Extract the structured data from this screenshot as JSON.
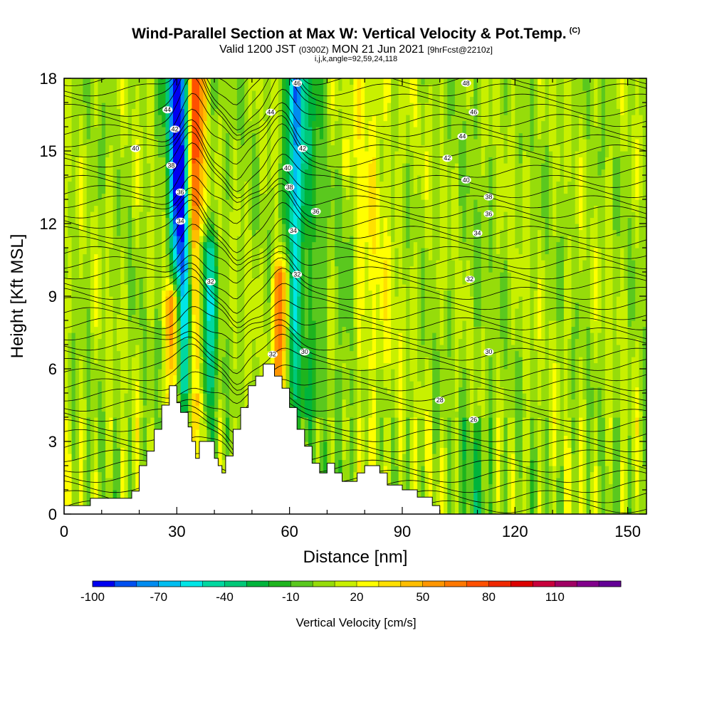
{
  "header": {
    "title": "Wind-Parallel Section at Max W: Vertical Velocity & Pot.Temp.",
    "title_mark": "(C)",
    "valid_prefix": "Valid 1200 JST",
    "valid_zulu": "(0300Z)",
    "valid_date": "MON 21 Jun 2021",
    "forecast": "[9hrFcst@2210z]",
    "params": "i,j,k,angle=92,59,24,118"
  },
  "chart_data": {
    "type": "heatmap",
    "title": "Wind-Parallel Section at Max W: Vertical Velocity & Pot.Temp.",
    "xlabel": "Distance [nm]",
    "ylabel": "Height [Kft MSL]",
    "xlim": [
      0,
      155
    ],
    "ylim": [
      0,
      18
    ],
    "x_ticks": [
      0,
      30,
      60,
      90,
      120,
      150
    ],
    "y_ticks": [
      0,
      3,
      6,
      9,
      12,
      15,
      18
    ],
    "colorbar": {
      "label": "Vertical Velocity [cm/s]",
      "tick_labels": [
        "-100",
        "-70",
        "-40",
        "-10",
        "20",
        "50",
        "80",
        "110"
      ],
      "tick_values": [
        -100,
        -70,
        -40,
        -10,
        20,
        50,
        80,
        110
      ],
      "colors": [
        "#0000f0",
        "#0050f0",
        "#008cf0",
        "#00bef0",
        "#00e6e6",
        "#00d8a0",
        "#00c878",
        "#00b43c",
        "#1eb41e",
        "#5ac81e",
        "#96dc0a",
        "#c8f000",
        "#ffff00",
        "#ffe000",
        "#ffbe00",
        "#ff9600",
        "#ff7800",
        "#ff5000",
        "#f02800",
        "#dc0000",
        "#c8003c",
        "#a00064",
        "#82008c",
        "#640096"
      ]
    },
    "updrafts": [
      {
        "x_center": 31,
        "peak_cm_s": -95,
        "top_kft": 18
      },
      {
        "x_center": 35.5,
        "peak_cm_s": 95,
        "top_kft": 18
      },
      {
        "x_center": 29,
        "peak_cm_s": 80,
        "top_kft": 9
      },
      {
        "x_center": 38,
        "peak_cm_s": -60,
        "top_kft": 11
      },
      {
        "x_center": 58,
        "peak_cm_s": 65,
        "top_kft": 10
      },
      {
        "x_center": 61,
        "peak_cm_s": -70,
        "top_kft": 18
      }
    ],
    "theta_labels": [
      {
        "value": "44",
        "x": 27.5,
        "y": 16.7
      },
      {
        "value": "42",
        "x": 29.5,
        "y": 15.9
      },
      {
        "value": "40",
        "x": 19,
        "y": 15.1
      },
      {
        "value": "38",
        "x": 28.5,
        "y": 14.4
      },
      {
        "value": "36",
        "x": 31,
        "y": 13.3
      },
      {
        "value": "34",
        "x": 31,
        "y": 12.1
      },
      {
        "value": "32",
        "x": 39,
        "y": 9.6
      },
      {
        "value": "46",
        "x": 62,
        "y": 17.8
      },
      {
        "value": "44",
        "x": 55,
        "y": 16.6
      },
      {
        "value": "42",
        "x": 63.5,
        "y": 15.1
      },
      {
        "value": "40",
        "x": 59.5,
        "y": 14.3
      },
      {
        "value": "38",
        "x": 60,
        "y": 13.5
      },
      {
        "value": "36",
        "x": 67,
        "y": 12.5
      },
      {
        "value": "34",
        "x": 61,
        "y": 11.7
      },
      {
        "value": "32",
        "x": 62,
        "y": 9.9
      },
      {
        "value": "30",
        "x": 64,
        "y": 6.7
      },
      {
        "value": "32",
        "x": 55.5,
        "y": 6.6
      },
      {
        "value": "48",
        "x": 107,
        "y": 17.8
      },
      {
        "value": "46",
        "x": 109,
        "y": 16.6
      },
      {
        "value": "44",
        "x": 106,
        "y": 15.6
      },
      {
        "value": "42",
        "x": 102,
        "y": 14.7
      },
      {
        "value": "40",
        "x": 107,
        "y": 13.8
      },
      {
        "value": "38",
        "x": 113,
        "y": 13.1
      },
      {
        "value": "36",
        "x": 113,
        "y": 12.4
      },
      {
        "value": "34",
        "x": 110,
        "y": 11.6
      },
      {
        "value": "32",
        "x": 108,
        "y": 9.7
      },
      {
        "value": "30",
        "x": 113,
        "y": 6.7
      },
      {
        "value": "28",
        "x": 100,
        "y": 4.7
      },
      {
        "value": "26",
        "x": 109,
        "y": 3.9
      }
    ],
    "terrain": [
      [
        0,
        0.35
      ],
      [
        7,
        0.35
      ],
      [
        7,
        0.65
      ],
      [
        18,
        0.65
      ],
      [
        18,
        0.95
      ],
      [
        20,
        0.95
      ],
      [
        20,
        2
      ],
      [
        22,
        2
      ],
      [
        22,
        2.6
      ],
      [
        24,
        2.6
      ],
      [
        24,
        3.5
      ],
      [
        26,
        3.5
      ],
      [
        26,
        4.5
      ],
      [
        28,
        4.5
      ],
      [
        28,
        5.3
      ],
      [
        30,
        5.3
      ],
      [
        30,
        4.6
      ],
      [
        31,
        4.6
      ],
      [
        31,
        4.2
      ],
      [
        33,
        4.2
      ],
      [
        33,
        3.6
      ],
      [
        34,
        3.6
      ],
      [
        34,
        3
      ],
      [
        35,
        3
      ],
      [
        35,
        2.3
      ],
      [
        36,
        2.3
      ],
      [
        36,
        3
      ],
      [
        40,
        3
      ],
      [
        40,
        2.3
      ],
      [
        41,
        2.3
      ],
      [
        41,
        2
      ],
      [
        42,
        2
      ],
      [
        42,
        1.7
      ],
      [
        43,
        1.7
      ],
      [
        43,
        2.4
      ],
      [
        45,
        2.4
      ],
      [
        45,
        3.5
      ],
      [
        47,
        3.5
      ],
      [
        47,
        4.4
      ],
      [
        49,
        4.4
      ],
      [
        49,
        5.3
      ],
      [
        51,
        5.3
      ],
      [
        51,
        5.7
      ],
      [
        53,
        5.7
      ],
      [
        53,
        6.2
      ],
      [
        56,
        6.2
      ],
      [
        56,
        5.7
      ],
      [
        58,
        5.7
      ],
      [
        58,
        5.2
      ],
      [
        60,
        5.2
      ],
      [
        60,
        4.4
      ],
      [
        62,
        4.4
      ],
      [
        62,
        3.5
      ],
      [
        64,
        3.5
      ],
      [
        64,
        2.8
      ],
      [
        66,
        2.8
      ],
      [
        66,
        2.1
      ],
      [
        68,
        2.1
      ],
      [
        68,
        1.7
      ],
      [
        70,
        1.7
      ],
      [
        70,
        2.1
      ],
      [
        72,
        2.1
      ],
      [
        72,
        1.7
      ],
      [
        74,
        1.7
      ],
      [
        74,
        1.35
      ],
      [
        78,
        1.35
      ],
      [
        78,
        1.7
      ],
      [
        80,
        1.7
      ],
      [
        80,
        2
      ],
      [
        84,
        2
      ],
      [
        84,
        1.7
      ],
      [
        86,
        1.7
      ],
      [
        86,
        1.2
      ],
      [
        90,
        1.2
      ],
      [
        90,
        1
      ],
      [
        94,
        1
      ],
      [
        94,
        0.7
      ],
      [
        98,
        0.7
      ],
      [
        98,
        0.35
      ],
      [
        100,
        0.35
      ],
      [
        100,
        0
      ],
      [
        0,
        0
      ]
    ]
  }
}
